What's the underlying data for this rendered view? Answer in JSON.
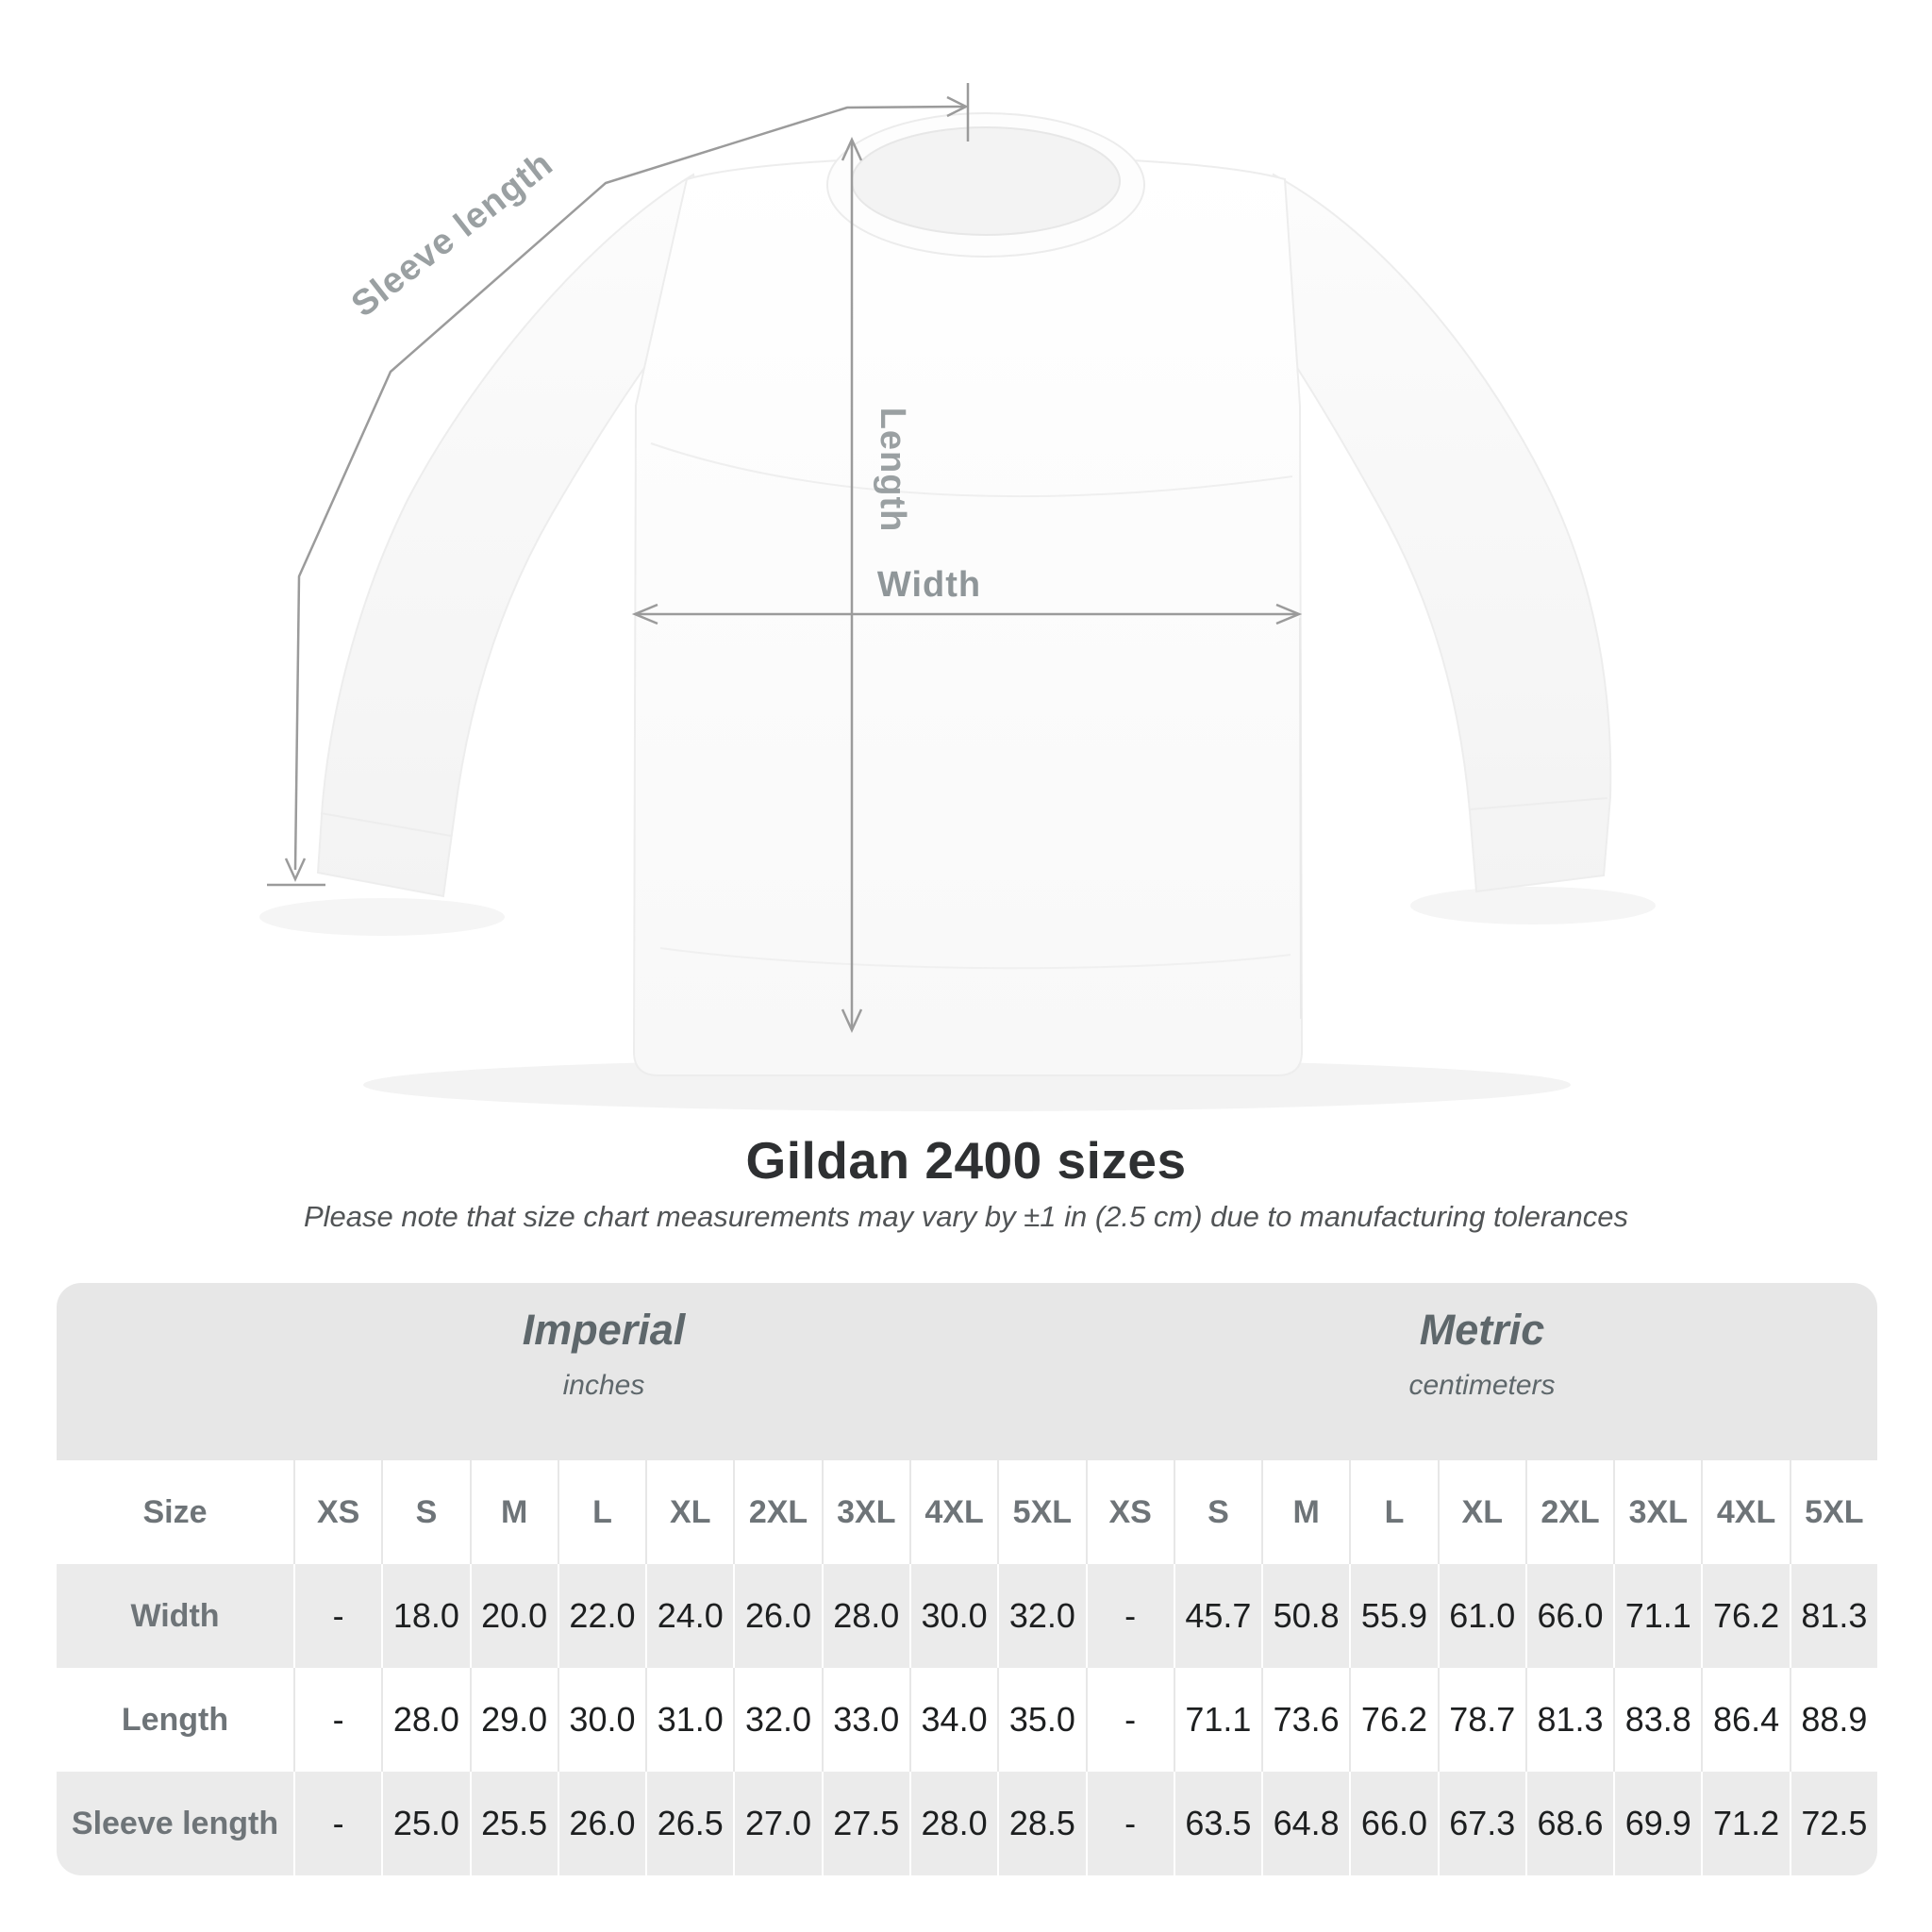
{
  "title": "Gildan 2400 sizes",
  "subtitle": "Please note that size chart measurements may vary by ±1 in (2.5 cm) due to manufacturing tolerances",
  "diagram": {
    "sleeve_length_label": "Sleeve length",
    "length_label": "Length",
    "width_label": "Width"
  },
  "table": {
    "unit_groups": [
      {
        "name": "Imperial",
        "unit": "inches"
      },
      {
        "name": "Metric",
        "unit": "centimeters"
      }
    ],
    "size_header_label": "Size",
    "sizes": [
      "XS",
      "S",
      "M",
      "L",
      "XL",
      "2XL",
      "3XL",
      "4XL",
      "5XL"
    ],
    "rows": [
      {
        "label": "Width",
        "imperial": [
          "-",
          "18.0",
          "20.0",
          "22.0",
          "24.0",
          "26.0",
          "28.0",
          "30.0",
          "32.0"
        ],
        "metric": [
          "-",
          "45.7",
          "50.8",
          "55.9",
          "61.0",
          "66.0",
          "71.1",
          "76.2",
          "81.3"
        ]
      },
      {
        "label": "Length",
        "imperial": [
          "-",
          "28.0",
          "29.0",
          "30.0",
          "31.0",
          "32.0",
          "33.0",
          "34.0",
          "35.0"
        ],
        "metric": [
          "-",
          "71.1",
          "73.6",
          "76.2",
          "78.7",
          "81.3",
          "83.8",
          "86.4",
          "88.9"
        ]
      },
      {
        "label": "Sleeve length",
        "imperial": [
          "-",
          "25.0",
          "25.5",
          "26.0",
          "26.5",
          "27.0",
          "27.5",
          "28.0",
          "28.5"
        ],
        "metric": [
          "-",
          "63.5",
          "64.8",
          "66.0",
          "67.3",
          "68.6",
          "69.9",
          "71.2",
          "72.5"
        ]
      }
    ]
  },
  "colors": {
    "measure_line": "#9b9b9b",
    "measure_label": "#9aa0a2",
    "band_gray": "#e7e7e7",
    "row_gray": "#ebebeb",
    "value_text": "#1d1f20",
    "muted_text": "#6e7478"
  }
}
